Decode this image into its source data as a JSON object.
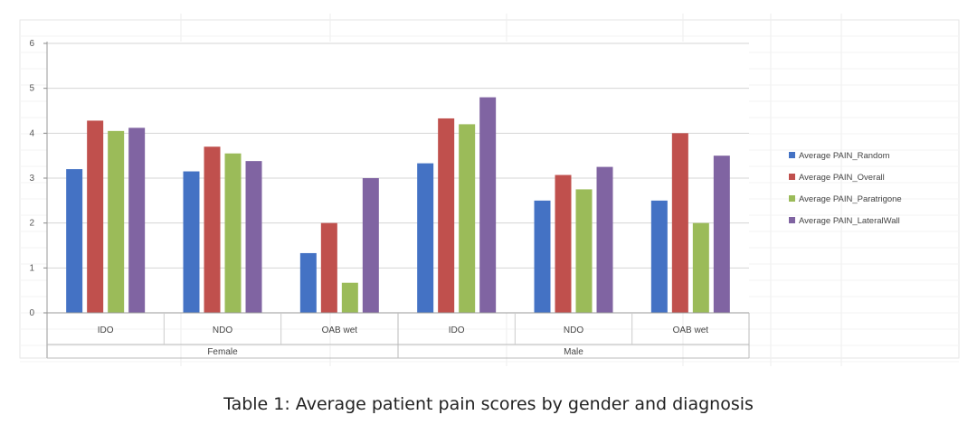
{
  "caption": "Table 1: Average patient pain scores by gender and diagnosis",
  "chart_data": {
    "type": "bar",
    "groups": [
      {
        "label": "Female",
        "categories": [
          "IDO",
          "NDO",
          "OAB wet"
        ]
      },
      {
        "label": "Male",
        "categories": [
          "IDO",
          "NDO",
          "OAB wet"
        ]
      }
    ],
    "categories": [
      "IDO",
      "NDO",
      "OAB wet",
      "IDO",
      "NDO",
      "OAB wet"
    ],
    "series": [
      {
        "name": "Average PAIN_Random",
        "color": "#4472C4",
        "values": [
          3.2,
          3.15,
          1.33,
          3.33,
          2.5,
          2.5
        ]
      },
      {
        "name": "Average PAIN_Overall",
        "color": "#C0504D",
        "values": [
          4.28,
          3.7,
          2.0,
          4.33,
          3.07,
          4.0
        ]
      },
      {
        "name": "Average PAIN_Paratrigone",
        "color": "#9BBB59",
        "values": [
          4.05,
          3.55,
          0.67,
          4.2,
          2.75,
          2.0
        ]
      },
      {
        "name": "Average PAIN_LateralWall",
        "color": "#8064A2",
        "values": [
          4.12,
          3.38,
          3.0,
          4.8,
          3.25,
          3.5
        ]
      }
    ],
    "yticks": [
      0,
      1,
      2,
      3,
      4,
      5,
      6
    ],
    "ylim": [
      0,
      6
    ],
    "grid": true,
    "legend": "right"
  }
}
